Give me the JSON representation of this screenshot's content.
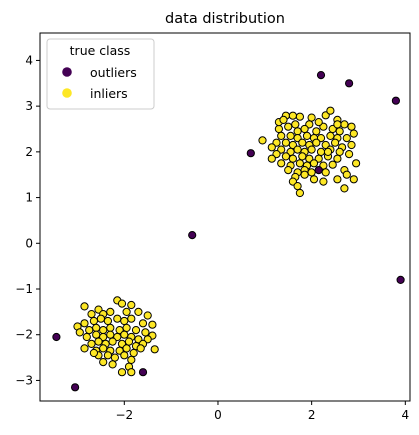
{
  "chart_data": {
    "type": "scatter",
    "title": "data distribution",
    "xlabel": "",
    "ylabel": "",
    "xlim": [
      -3.8,
      4.1
    ],
    "ylim": [
      -3.45,
      4.6
    ],
    "xticks": [
      -2,
      0,
      2,
      4
    ],
    "yticks": [
      -3,
      -2,
      -1,
      0,
      1,
      2,
      3,
      4
    ],
    "grid": false,
    "legend": {
      "title": "true class",
      "placement": "top-left",
      "entries": [
        {
          "label": "outliers",
          "color": "#440154"
        },
        {
          "label": "inliers",
          "color": "#fde725"
        }
      ]
    },
    "series": [
      {
        "name": "inliers",
        "color": "#fde725",
        "edgecolor": "#000000",
        "points": [
          [
            1.45,
            2.79
          ],
          [
            1.6,
            2.79
          ],
          [
            1.75,
            2.77
          ],
          [
            1.95,
            2.6
          ],
          [
            2.0,
            2.75
          ],
          [
            2.3,
            2.8
          ],
          [
            2.4,
            2.9
          ],
          [
            2.55,
            2.7
          ],
          [
            2.7,
            2.6
          ],
          [
            2.85,
            2.55
          ],
          [
            1.3,
            2.5
          ],
          [
            1.5,
            2.55
          ],
          [
            1.7,
            2.45
          ],
          [
            1.85,
            2.5
          ],
          [
            2.1,
            2.45
          ],
          [
            2.25,
            2.55
          ],
          [
            2.45,
            2.5
          ],
          [
            2.6,
            2.45
          ],
          [
            2.9,
            2.4
          ],
          [
            1.35,
            2.35
          ],
          [
            1.55,
            2.35
          ],
          [
            1.7,
            2.3
          ],
          [
            1.9,
            2.35
          ],
          [
            2.05,
            2.3
          ],
          [
            2.2,
            2.3
          ],
          [
            2.4,
            2.35
          ],
          [
            2.55,
            2.3
          ],
          [
            2.75,
            2.3
          ],
          [
            1.25,
            2.2
          ],
          [
            1.45,
            2.2
          ],
          [
            1.6,
            2.15
          ],
          [
            1.8,
            2.2
          ],
          [
            1.95,
            2.15
          ],
          [
            2.1,
            2.2
          ],
          [
            2.3,
            2.15
          ],
          [
            2.5,
            2.2
          ],
          [
            2.65,
            2.1
          ],
          [
            2.85,
            2.15
          ],
          [
            0.95,
            2.25
          ],
          [
            1.15,
            2.1
          ],
          [
            1.35,
            2.05
          ],
          [
            1.55,
            2.0
          ],
          [
            1.7,
            2.05
          ],
          [
            1.85,
            2.0
          ],
          [
            2.0,
            2.05
          ],
          [
            2.2,
            2.0
          ],
          [
            2.4,
            2.05
          ],
          [
            2.6,
            2.0
          ],
          [
            2.8,
            1.95
          ],
          [
            1.25,
            1.95
          ],
          [
            1.45,
            1.9
          ],
          [
            1.6,
            1.85
          ],
          [
            1.8,
            1.9
          ],
          [
            1.95,
            1.85
          ],
          [
            2.15,
            1.85
          ],
          [
            2.35,
            1.9
          ],
          [
            2.55,
            1.85
          ],
          [
            1.35,
            1.75
          ],
          [
            1.55,
            1.7
          ],
          [
            1.75,
            1.75
          ],
          [
            1.9,
            1.7
          ],
          [
            2.05,
            1.75
          ],
          [
            2.25,
            1.7
          ],
          [
            2.45,
            1.72
          ],
          [
            1.5,
            1.6
          ],
          [
            1.7,
            1.55
          ],
          [
            1.85,
            1.6
          ],
          [
            2.0,
            1.55
          ],
          [
            2.3,
            1.55
          ],
          [
            2.7,
            1.6
          ],
          [
            2.75,
            1.5
          ],
          [
            1.65,
            1.45
          ],
          [
            1.85,
            1.5
          ],
          [
            2.05,
            1.4
          ],
          [
            2.25,
            1.35
          ],
          [
            2.55,
            1.4
          ],
          [
            2.9,
            1.4
          ],
          [
            1.6,
            1.35
          ],
          [
            1.7,
            1.25
          ],
          [
            1.75,
            1.1
          ],
          [
            2.7,
            1.2
          ],
          [
            1.3,
            2.65
          ],
          [
            2.15,
            2.65
          ],
          [
            1.65,
            2.6
          ],
          [
            1.4,
            2.7
          ],
          [
            2.55,
            2.6
          ],
          [
            1.15,
            1.85
          ],
          [
            2.95,
            1.75
          ],
          [
            2.35,
            2.0
          ],
          [
            -2.85,
            -1.38
          ],
          [
            -2.7,
            -1.55
          ],
          [
            -2.55,
            -1.45
          ],
          [
            -2.15,
            -1.25
          ],
          [
            -2.05,
            -1.32
          ],
          [
            -1.85,
            -1.35
          ],
          [
            -2.45,
            -1.55
          ],
          [
            -2.3,
            -1.5
          ],
          [
            -1.95,
            -1.5
          ],
          [
            -1.7,
            -1.5
          ],
          [
            -1.5,
            -1.58
          ],
          [
            -3.0,
            -1.82
          ],
          [
            -2.85,
            -1.75
          ],
          [
            -2.65,
            -1.7
          ],
          [
            -2.5,
            -1.65
          ],
          [
            -2.35,
            -1.7
          ],
          [
            -2.15,
            -1.65
          ],
          [
            -2.0,
            -1.7
          ],
          [
            -1.85,
            -1.65
          ],
          [
            -1.6,
            -1.75
          ],
          [
            -1.4,
            -1.78
          ],
          [
            -2.95,
            -1.95
          ],
          [
            -2.75,
            -1.9
          ],
          [
            -2.6,
            -1.85
          ],
          [
            -2.45,
            -1.9
          ],
          [
            -2.3,
            -1.85
          ],
          [
            -2.1,
            -1.9
          ],
          [
            -1.95,
            -1.85
          ],
          [
            -1.75,
            -1.9
          ],
          [
            -1.55,
            -1.95
          ],
          [
            -1.4,
            -2.02
          ],
          [
            -2.8,
            -2.05
          ],
          [
            -2.6,
            -2.0
          ],
          [
            -2.45,
            -2.05
          ],
          [
            -2.3,
            -2.0
          ],
          [
            -2.15,
            -2.05
          ],
          [
            -2.0,
            -2.0
          ],
          [
            -1.85,
            -2.05
          ],
          [
            -1.7,
            -2.1
          ],
          [
            -1.5,
            -2.1
          ],
          [
            -2.7,
            -2.2
          ],
          [
            -2.55,
            -2.15
          ],
          [
            -2.4,
            -2.2
          ],
          [
            -2.25,
            -2.15
          ],
          [
            -2.05,
            -2.2
          ],
          [
            -1.9,
            -2.15
          ],
          [
            -1.75,
            -2.25
          ],
          [
            -1.6,
            -2.2
          ],
          [
            -2.85,
            -2.3
          ],
          [
            -2.6,
            -2.35
          ],
          [
            -2.45,
            -2.3
          ],
          [
            -2.3,
            -2.35
          ],
          [
            -2.1,
            -2.35
          ],
          [
            -1.95,
            -2.3
          ],
          [
            -1.8,
            -2.4
          ],
          [
            -2.55,
            -2.45
          ],
          [
            -2.35,
            -2.45
          ],
          [
            -2.2,
            -2.5
          ],
          [
            -2.0,
            -2.45
          ],
          [
            -1.85,
            -2.55
          ],
          [
            -2.45,
            -2.6
          ],
          [
            -2.25,
            -2.65
          ],
          [
            -1.9,
            -2.7
          ],
          [
            -2.05,
            -2.82
          ],
          [
            -1.85,
            -2.82
          ],
          [
            -1.35,
            -2.32
          ],
          [
            -2.65,
            -2.4
          ],
          [
            -1.65,
            -2.3
          ]
        ]
      },
      {
        "name": "outliers",
        "color": "#440154",
        "edgecolor": "#000000",
        "points": [
          [
            2.2,
            3.68
          ],
          [
            2.8,
            3.5
          ],
          [
            3.8,
            3.12
          ],
          [
            0.7,
            1.97
          ],
          [
            2.15,
            1.6
          ],
          [
            -0.55,
            0.18
          ],
          [
            3.9,
            -0.8
          ],
          [
            -3.45,
            -2.05
          ],
          [
            -1.6,
            -2.82
          ],
          [
            -3.05,
            -3.15
          ]
        ]
      }
    ]
  }
}
